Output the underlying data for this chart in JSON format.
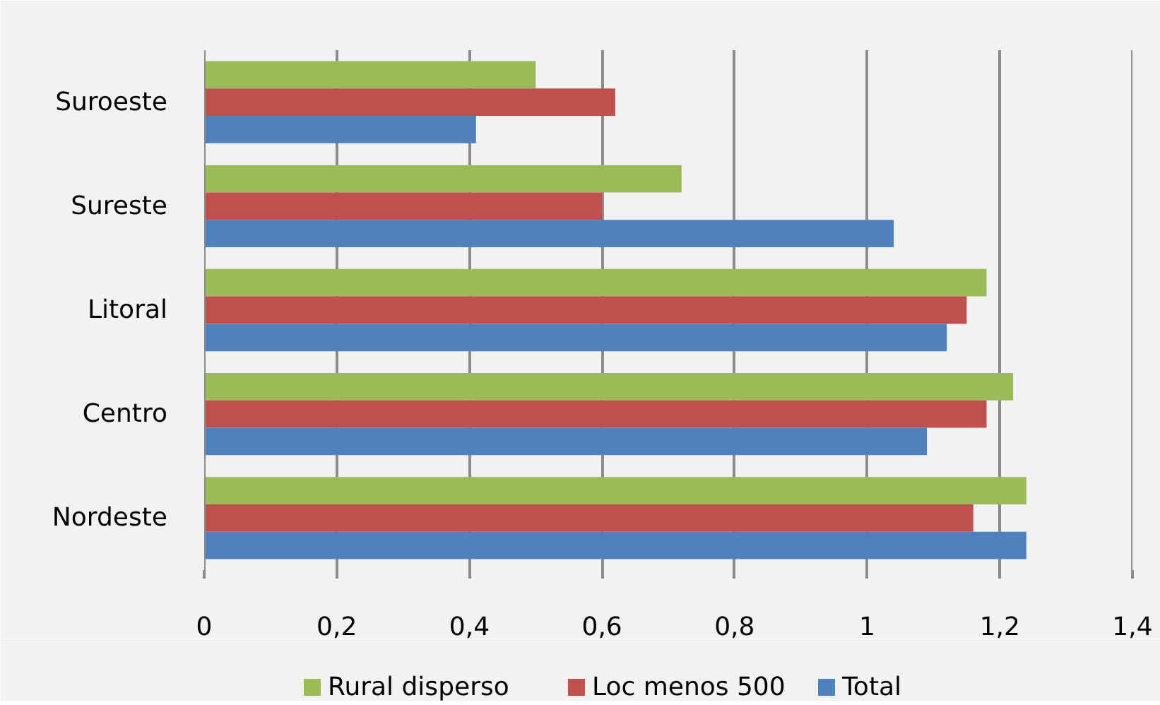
{
  "chart_data": {
    "type": "bar",
    "orientation": "horizontal",
    "categories": [
      "Suroeste",
      "Sureste",
      "Litoral",
      "Centro",
      "Nordeste"
    ],
    "series": [
      {
        "name": "Rural disperso",
        "color": "#9bbb59",
        "values": [
          0.5,
          0.72,
          1.18,
          1.22,
          1.24
        ]
      },
      {
        "name": "Loc menos 500",
        "color": "#c0504d",
        "values": [
          0.62,
          0.6,
          1.15,
          1.18,
          1.16
        ]
      },
      {
        "name": "Total",
        "color": "#4f81bd",
        "values": [
          0.41,
          1.04,
          1.12,
          1.09,
          1.24
        ]
      }
    ],
    "xlim": [
      0,
      1.4
    ],
    "xticks": [
      0,
      {
        "value": 0.2,
        "label": "0,2"
      },
      {
        "value": 0.4,
        "label": "0,4"
      },
      {
        "value": 0.6,
        "label": "0,6"
      },
      {
        "value": 0.8,
        "label": "0,8"
      },
      1,
      {
        "value": 1.2,
        "label": "1,2"
      },
      {
        "value": 1.4,
        "label": "1,4"
      }
    ],
    "grid": "x",
    "legend": "bottom"
  }
}
